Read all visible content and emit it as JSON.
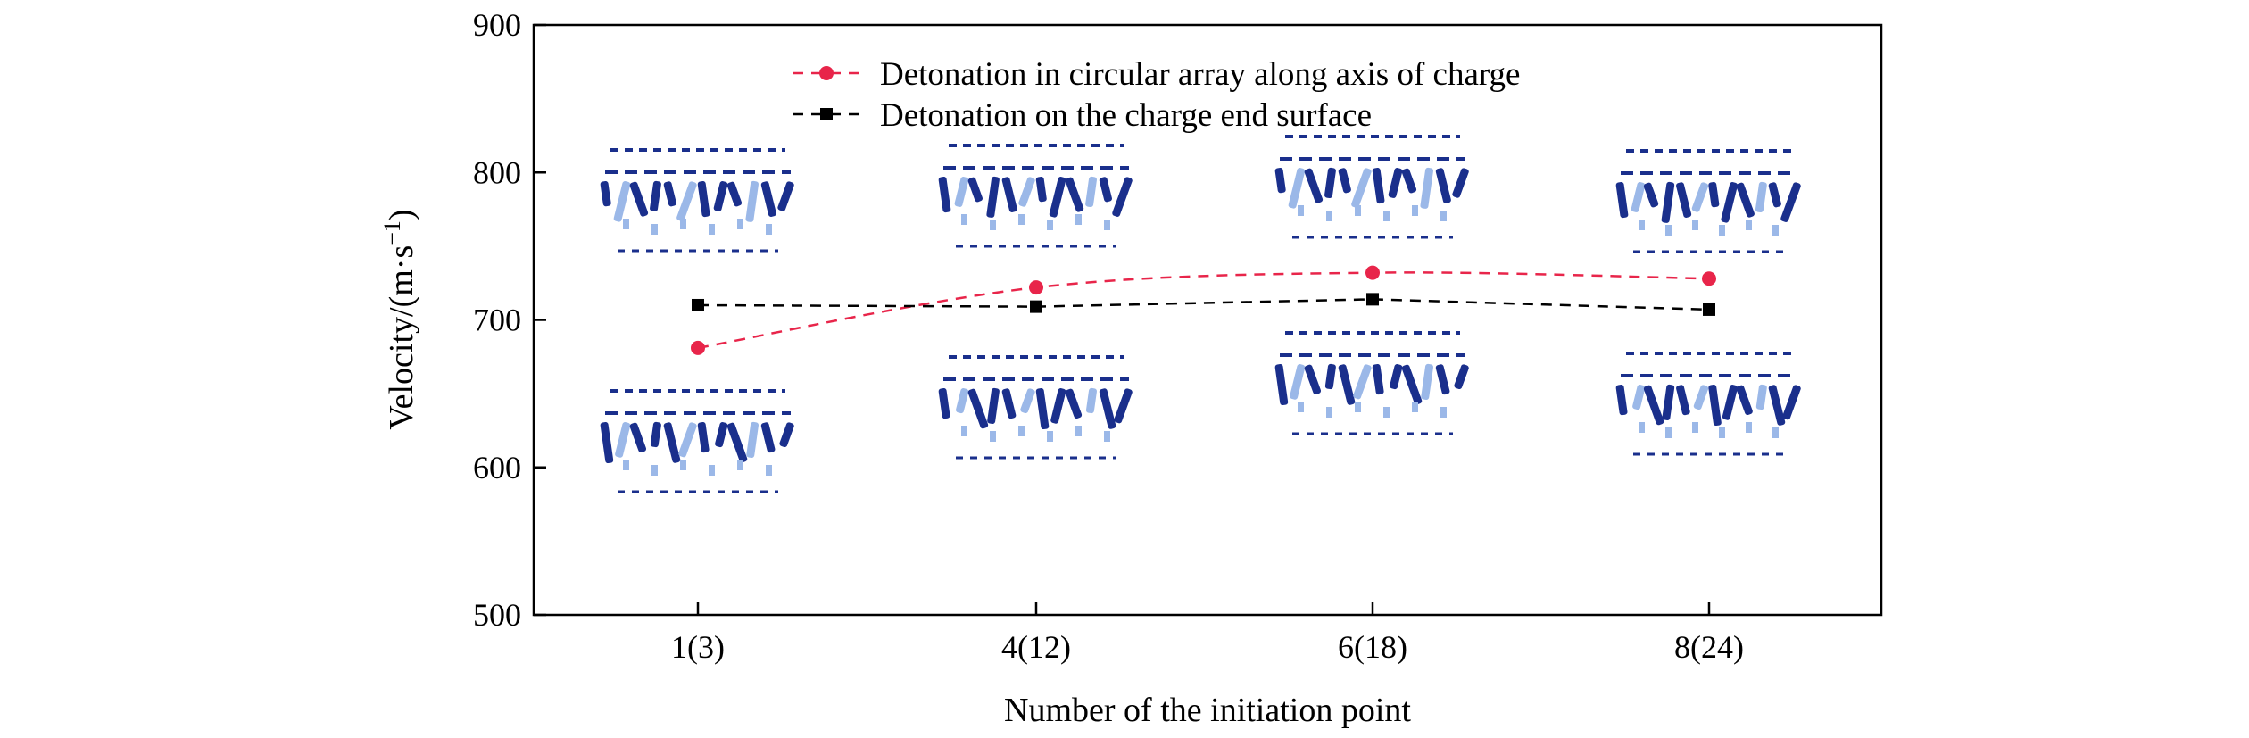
{
  "chart_data": {
    "type": "line",
    "categories": [
      "1(3)",
      "4(12)",
      "6(18)",
      "8(24)"
    ],
    "series": [
      {
        "name": "Detonation in circular array along axis of charge",
        "values": [
          681,
          722,
          732,
          728
        ],
        "color": "#e8254a",
        "marker": "circle",
        "line_style": "dashed"
      },
      {
        "name": "Detonation on the charge end surface",
        "values": [
          710,
          709,
          714,
          707
        ],
        "color": "#000000",
        "marker": "square",
        "line_style": "dashed"
      }
    ],
    "xlabel": "Number of the initiation point",
    "ylabel_main": "Velocity/(m·s",
    "ylabel_sup": "−1",
    "ylabel_end": ")",
    "ylim": [
      500,
      900
    ],
    "yticks": [
      "500",
      "600",
      "700",
      "800",
      "900"
    ],
    "grid": false,
    "legend_position": "top-center",
    "fragment_colors": {
      "dark": "#1a2f8c",
      "light": "#9bb8e8"
    }
  }
}
